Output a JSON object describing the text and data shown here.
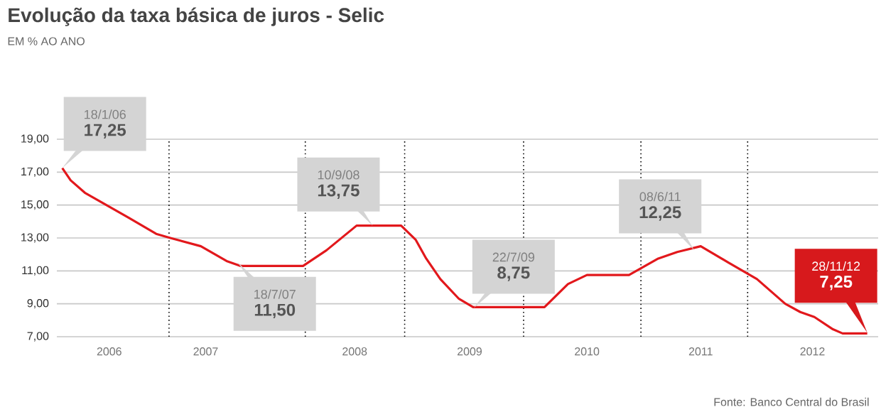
{
  "chart_data": {
    "type": "line",
    "title": "Evolução da taxa básica de juros - Selic",
    "subtitle": "EM % AO ANO",
    "x": [
      "2006-01-18",
      "2006-02-13",
      "2006-03-29",
      "2006-08-11",
      "2006-11-06",
      "2006-12-20",
      "2007-03-25",
      "2007-06-13",
      "2007-07-27",
      "2008-02-06",
      "2008-04-19",
      "2008-07-22",
      "2008-12-08",
      "2009-01-22",
      "2009-02-24",
      "2009-04-09",
      "2009-06-06",
      "2009-07-20",
      "2010-02-27",
      "2010-05-11",
      "2010-07-09",
      "2010-11-17",
      "2011-02-16",
      "2011-04-16",
      "2011-06-28",
      "2011-09-23",
      "2011-12-20",
      "2012-03-17",
      "2012-05-03",
      "2012-06-16",
      "2012-08-13",
      "2012-09-12",
      "2012-11-28"
    ],
    "series": [
      {
        "color": "#e2181c",
        "values": [
          17.25,
          16.5,
          15.75,
          14.25,
          13.25,
          13.0,
          12.5,
          11.6,
          11.3,
          11.3,
          12.25,
          13.75,
          13.75,
          12.9,
          11.75,
          10.5,
          9.3,
          8.8,
          8.8,
          10.2,
          10.75,
          10.75,
          11.75,
          12.15,
          12.5,
          11.5,
          10.5,
          9.0,
          8.5,
          8.2,
          7.45,
          7.2,
          7.2
        ]
      }
    ],
    "xlim": [
      "2006-01-01",
      "2013-01-01"
    ],
    "ylim": [
      7,
      19
    ],
    "xticks": [
      {
        "value": "2006-06-13",
        "label": "2006"
      },
      {
        "value": "2007-04-09",
        "label": "2007"
      },
      {
        "value": "2008-07-16",
        "label": "2008"
      },
      {
        "value": "2009-07-09",
        "label": "2009"
      },
      {
        "value": "2010-07-09",
        "label": "2010"
      },
      {
        "value": "2011-06-28",
        "label": "2011"
      },
      {
        "value": "2012-06-10",
        "label": "2012"
      }
    ],
    "yticks": [
      {
        "value": 7,
        "label": "7,00"
      },
      {
        "value": 9,
        "label": "9,00"
      },
      {
        "value": 11,
        "label": "11,00"
      },
      {
        "value": 13,
        "label": "13,00"
      },
      {
        "value": 15,
        "label": "15,00"
      },
      {
        "value": 17,
        "label": "17,00"
      },
      {
        "value": 19,
        "label": "19,00"
      }
    ],
    "grid": "y",
    "ref_lines": [
      {
        "axis": "x",
        "value": "2006-12-16",
        "color": "#000000",
        "line_style": "dotted"
      },
      {
        "axis": "x",
        "value": "2008-02-13",
        "color": "#000000",
        "line_style": "dotted"
      },
      {
        "axis": "x",
        "value": "2008-12-19",
        "color": "#000000",
        "line_style": "dotted"
      },
      {
        "axis": "x",
        "value": "2009-12-24",
        "color": "#000000",
        "line_style": "dotted"
      },
      {
        "axis": "x",
        "value": "2010-12-24",
        "color": "#000000",
        "line_style": "dotted"
      },
      {
        "axis": "x",
        "value": "2011-11-21",
        "color": "#000000",
        "line_style": "dotted"
      }
    ],
    "annotations": [
      "18/1/06",
      {
        "text": "17,25",
        "x": "2006-01-18",
        "y": 17.25
      },
      "18/7/07",
      {
        "text": "11,50",
        "x": "2007-07-18",
        "y": 11.5
      },
      "10/9/08",
      {
        "text": "13,75",
        "x": "2008-09-10",
        "y": 13.75
      },
      "22/7/09",
      {
        "text": "8,75",
        "x": "2009-07-22",
        "y": 8.75
      },
      "08/6/11",
      {
        "text": "12,25",
        "x": "2011-06-08",
        "y": 12.25
      },
      "28/11/12",
      {
        "text": "7,25",
        "x": "2012-11-28",
        "y": 7.25
      },
      "Fonte: Banco Central do Brasil"
    ]
  }
}
